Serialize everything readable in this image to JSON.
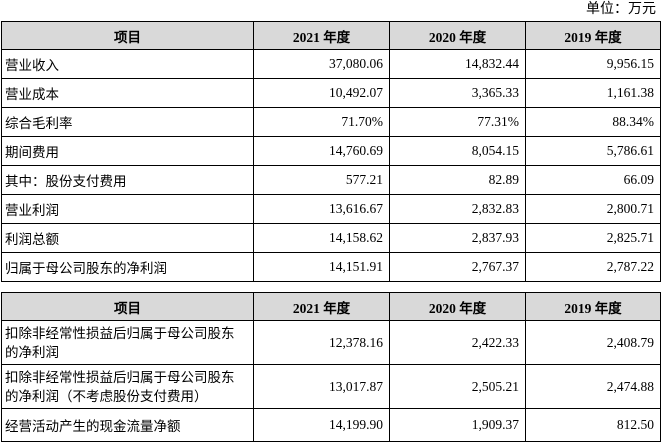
{
  "unit_label": "单位：万元",
  "table1": {
    "headers": [
      "项目",
      "2021 年度",
      "2020 年度",
      "2019 年度"
    ],
    "rows": [
      {
        "label": "营业收入",
        "v2021": "37,080.06",
        "v2020": "14,832.44",
        "v2019": "9,956.15"
      },
      {
        "label": "营业成本",
        "v2021": "10,492.07",
        "v2020": "3,365.33",
        "v2019": "1,161.38"
      },
      {
        "label": "综合毛利率",
        "v2021": "71.70%",
        "v2020": "77.31%",
        "v2019": "88.34%"
      },
      {
        "label": "期间费用",
        "v2021": "14,760.69",
        "v2020": "8,054.15",
        "v2019": "5,786.61"
      },
      {
        "label": "其中：股份支付费用",
        "v2021": "577.21",
        "v2020": "82.89",
        "v2019": "66.09"
      },
      {
        "label": "营业利润",
        "v2021": "13,616.67",
        "v2020": "2,832.83",
        "v2019": "2,800.71"
      },
      {
        "label": "利润总额",
        "v2021": "14,158.62",
        "v2020": "2,837.93",
        "v2019": "2,825.71"
      },
      {
        "label": "归属于母公司股东的净利润",
        "v2021": "14,151.91",
        "v2020": "2,767.37",
        "v2019": "2,787.22"
      }
    ]
  },
  "table2": {
    "headers": [
      "项目",
      "2021 年度",
      "2020 年度",
      "2019 年度"
    ],
    "rows": [
      {
        "label": "扣除非经常性损益后归属于母公司股东的净利润",
        "v2021": "12,378.16",
        "v2020": "2,422.33",
        "v2019": "2,408.79"
      },
      {
        "label": "扣除非经常性损益后归属于母公司股东的净利润（不考虑股份支付费用）",
        "v2021": "13,017.87",
        "v2020": "2,505.21",
        "v2019": "2,474.88"
      },
      {
        "label": "经营活动产生的现金流量净额",
        "v2021": "14,199.90",
        "v2020": "1,909.37",
        "v2019": "812.50"
      }
    ]
  }
}
